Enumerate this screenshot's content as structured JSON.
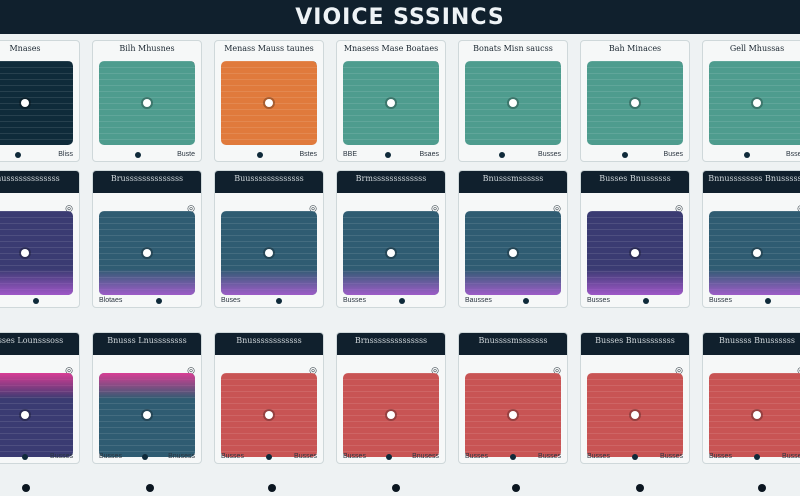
{
  "app": {
    "title": "VIOICE SSSINCS"
  },
  "colors": {
    "topbar": "#10202d",
    "teal": "#4e9c8e",
    "orange": "#e07a3c",
    "navy": "#0f2b3a",
    "indigo": "#3a3b72",
    "steel": "#2f5c72",
    "coral": "#c85454",
    "magenta": "#c0318a"
  },
  "rows": [
    {
      "header_style": "light",
      "cards": [
        {
          "heading": "Mnases",
          "footer_left": "",
          "footer_right": "Bliss",
          "screen_color": "#0f2b3a",
          "icon": "dot-icon"
        },
        {
          "heading": "Bilh Mhusnes",
          "footer_left": "",
          "footer_right": "Buste",
          "screen_color": "#4e9c8e",
          "icon": "dot-icon"
        },
        {
          "heading": "Menass Mauss taunes",
          "footer_left": "",
          "footer_right": "Bstes",
          "screen_color": "#e07a3c",
          "icon": "dot-icon"
        },
        {
          "heading": "Mnasess Mase Boataes",
          "footer_left": "BBE",
          "footer_right": "Bsaes",
          "screen_color": "#4e9c8e",
          "icon": "dot-icon"
        },
        {
          "heading": "Bonats Misn saucss",
          "footer_left": "",
          "footer_right": "Busses",
          "screen_color": "#4e9c8e",
          "icon": "dot-icon"
        },
        {
          "heading": "Bah Minaces",
          "footer_left": "",
          "footer_right": "Buses",
          "screen_color": "#4e9c8e",
          "icon": "dot-icon"
        },
        {
          "heading": "Gell Mhussas",
          "footer_left": "",
          "footer_right": "Bsses",
          "screen_color": "#4e9c8e",
          "icon": "dot-icon"
        }
      ]
    },
    {
      "header_style": "dark",
      "cards": [
        {
          "heading": "Bnusssssssssssss",
          "footer_left": "Bausss",
          "footer_right": "",
          "screen_color": "#3a3b72",
          "icon": "dot-icon"
        },
        {
          "heading": "Brussssssssssssss",
          "footer_left": "Blotaes",
          "footer_right": "",
          "screen_color": "#2f5c72",
          "icon": "dot-icon"
        },
        {
          "heading": "Buusssssssssssss",
          "footer_left": "Buses",
          "footer_right": "",
          "screen_color": "#2f5c72",
          "icon": "dot-icon"
        },
        {
          "heading": "Brmsssssssssssss",
          "footer_left": "Busses",
          "footer_right": "",
          "screen_color": "#2f5c72",
          "icon": "dot-icon"
        },
        {
          "heading": "Bnusssmssssss",
          "footer_left": "Bausses",
          "footer_right": "",
          "screen_color": "#2f5c72",
          "icon": "dot-icon"
        },
        {
          "heading": "Busses Bnussssss",
          "footer_left": "Busses",
          "footer_right": "",
          "screen_color": "#3a3b72",
          "icon": "dot-icon"
        },
        {
          "heading": "Bnnussssssss Bnussssss",
          "footer_left": "Busses",
          "footer_right": "",
          "screen_color": "#2f5c72",
          "icon": "dot-icon"
        }
      ]
    },
    {
      "header_style": "dark",
      "cards": [
        {
          "heading": "Busses Lounsssoss",
          "footer_left": "Busses",
          "footer_right": "Busses",
          "screen_color": "#3a3b72",
          "icon": "dot-icon"
        },
        {
          "heading": "Bnusss Lnussssssss",
          "footer_left": "Busses",
          "footer_right": "Bnusess",
          "screen_color": "#2f5c72",
          "icon": "dot-icon"
        },
        {
          "heading": "Bnussssssssssss",
          "footer_left": "Busses",
          "footer_right": "Busses",
          "screen_color": "#c85454",
          "icon": "dot-icon"
        },
        {
          "heading": "Brnssssssssssssss",
          "footer_left": "Busses",
          "footer_right": "Bnusess",
          "screen_color": "#c85454",
          "icon": "dot-icon"
        },
        {
          "heading": "Bnussssmsssssss",
          "footer_left": "Busses",
          "footer_right": "Busses",
          "screen_color": "#c85454",
          "icon": "dot-icon"
        },
        {
          "heading": "Busses Bnussssssss",
          "footer_left": "Busses",
          "footer_right": "Busses",
          "screen_color": "#c85454",
          "icon": "dot-icon"
        },
        {
          "heading": "Bnussss Bnussssss",
          "footer_left": "Busses",
          "footer_right": "Busses",
          "screen_color": "#c85454",
          "icon": "dot-icon"
        }
      ]
    }
  ]
}
